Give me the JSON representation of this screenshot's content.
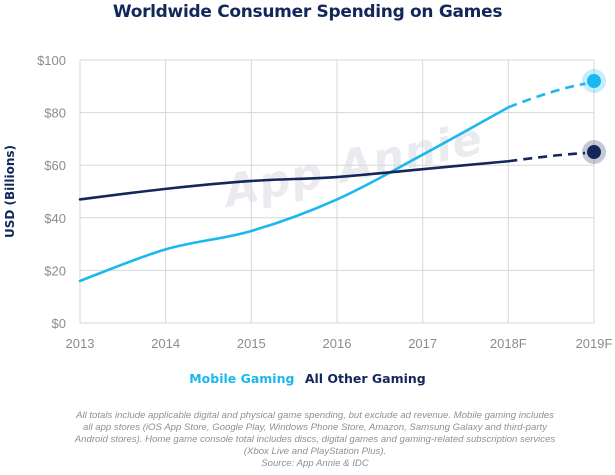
{
  "chart_data": {
    "type": "line",
    "title": "Worldwide Consumer Spending on Games",
    "ylabel": "USD (Billions)",
    "xlabel": "",
    "categories": [
      "2013",
      "2014",
      "2015",
      "2016",
      "2017",
      "2018F",
      "2019F"
    ],
    "forecast_from_index": 5,
    "ylim": [
      0,
      100
    ],
    "yticks": [
      0,
      20,
      40,
      60,
      80,
      100
    ],
    "ytick_labels": [
      "$0",
      "$20",
      "$40",
      "$60",
      "$80",
      "$100"
    ],
    "grid": true,
    "legend_position": "bottom",
    "series": [
      {
        "name": "Mobile Gaming",
        "color": "#1ab8ee",
        "values": [
          16,
          28,
          35,
          47,
          64,
          82,
          92
        ]
      },
      {
        "name": "All Other Gaming",
        "color": "#14275a",
        "values": [
          47,
          51,
          54,
          55.5,
          58.5,
          61.5,
          65
        ]
      }
    ]
  },
  "watermark": "App Annie",
  "footnote": [
    "All totals include applicable digital and physical game spending, but exclude ad revenue. Mobile gaming includes",
    "all app stores (iOS App Store, Google Play, Windows Phone Store, Amazon, Samsung Galaxy and third-party",
    "Android stores). Home game console total includes discs, digital games and gaming-related subscription services",
    "(Xbox Live and PlayStation Plus).",
    "Source: App Annie & IDC"
  ]
}
